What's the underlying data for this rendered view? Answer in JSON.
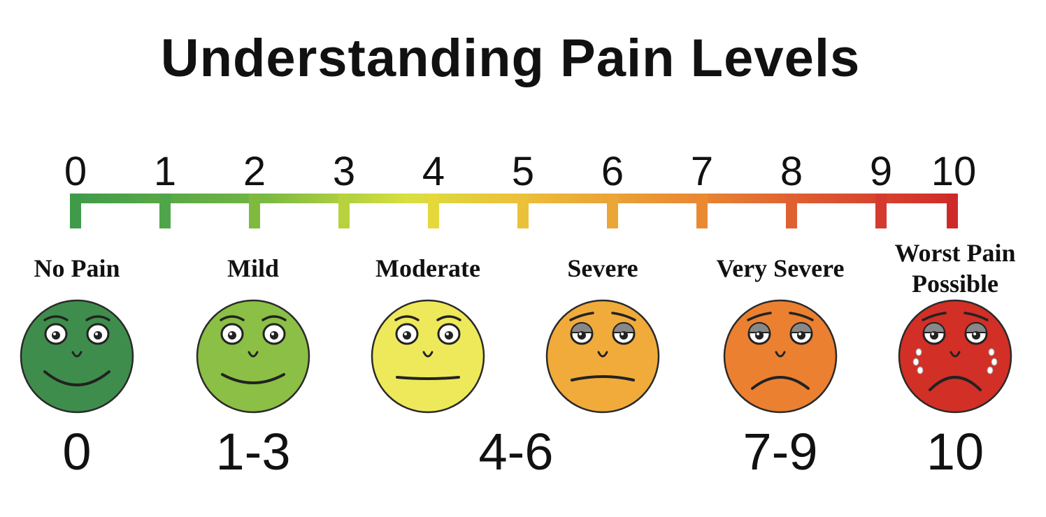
{
  "title": "Understanding Pain Levels",
  "scale": {
    "ticks": [
      "0",
      "1",
      "2",
      "3",
      "4",
      "5",
      "6",
      "7",
      "8",
      "9",
      "10"
    ],
    "colors": [
      "#3f9a4a",
      "#4fa54a",
      "#7fba3f",
      "#b8d23e",
      "#e6d83a",
      "#ecc13a",
      "#eba638",
      "#e98a33",
      "#df6131",
      "#d43a2e",
      "#cf2a2a"
    ]
  },
  "levels": [
    {
      "label": "No Pain",
      "range": "0",
      "face_color": "#3f8d4c",
      "expression": "big-smile"
    },
    {
      "label": "Mild",
      "range": "1-3",
      "face_color": "#8bbf45",
      "expression": "smile"
    },
    {
      "label": "Moderate",
      "range": "4-6",
      "face_color": "#eee95a",
      "expression": "neutral"
    },
    {
      "label": "Severe",
      "range": "",
      "face_color": "#f0ab3b",
      "expression": "slight-frown"
    },
    {
      "label": "Very Severe",
      "range": "7-9",
      "face_color": "#eb8031",
      "expression": "frown"
    },
    {
      "label": "Worst Pain Possible",
      "label_lines": [
        "Worst Pain",
        "Possible"
      ],
      "range": "10",
      "face_color": "#d22f27",
      "expression": "crying"
    }
  ]
}
